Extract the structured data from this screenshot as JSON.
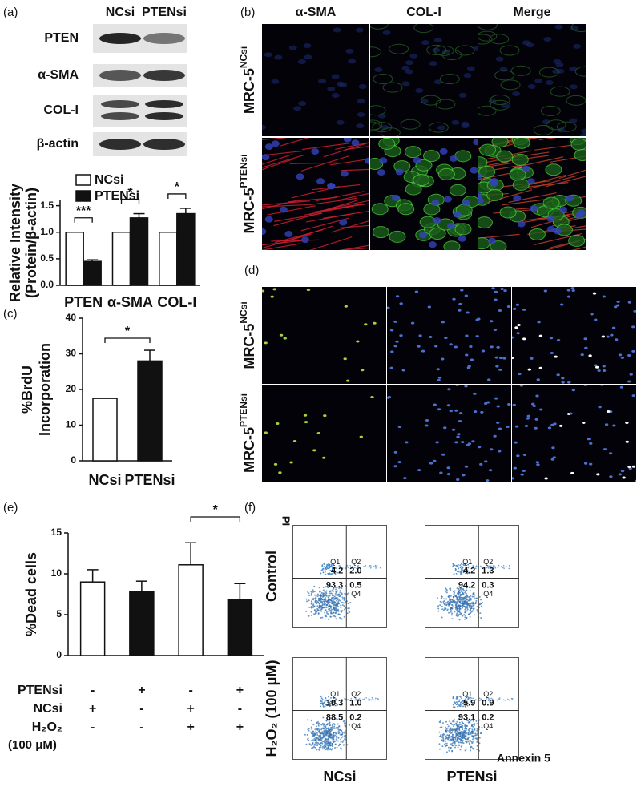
{
  "panel_labels": [
    "(a)",
    "(b)",
    "(c)",
    "(d)",
    "(e)",
    "(f)"
  ],
  "blot": {
    "columns": [
      "NCsi",
      "PTENsi"
    ],
    "rows": [
      "PTEN",
      "α-SMA",
      "COL-I",
      "β-actin"
    ]
  },
  "chart_data": [
    {
      "type": "bar",
      "y_label": [
        "Relative Intensity",
        "(Protein/β-actin)"
      ],
      "categories": [
        "PTEN",
        "α-SMA",
        "COL-I"
      ],
      "series": [
        {
          "name": "NCsi",
          "color": "#ffffff",
          "values": [
            1.0,
            1.0,
            1.0
          ]
        },
        {
          "name": "PTENsi",
          "color": "#111111",
          "values": [
            0.45,
            1.27,
            1.35
          ],
          "errors": [
            0.03,
            0.08,
            0.1
          ]
        }
      ],
      "ylim": [
        0,
        1.6
      ],
      "yticks": [
        {
          "value": 0,
          "label": "0.0"
        },
        {
          "value": 0.5,
          "label": "0.5"
        },
        {
          "value": 1,
          "label": "1.0"
        },
        {
          "value": 1.5,
          "label": "1.5"
        }
      ],
      "significance": [
        "***",
        "*",
        "*"
      ]
    },
    {
      "type": "bar",
      "y_label": [
        "%BrdU",
        "Incorporation"
      ],
      "categories": [
        "NCsi",
        "PTENsi"
      ],
      "values": [
        17.5,
        28
      ],
      "errors": [
        0,
        3
      ],
      "colors": [
        "#ffffff",
        "#111111"
      ],
      "ylim": [
        0,
        40
      ],
      "yticks": [
        0,
        10,
        20,
        30,
        40
      ],
      "significance": "*"
    },
    {
      "type": "bar",
      "y_label": [
        "%Dead cells"
      ],
      "categories": [
        null,
        null,
        null,
        null
      ],
      "values": [
        9.0,
        7.8,
        11.1,
        6.8
      ],
      "errors": [
        1.5,
        1.3,
        2.7,
        2.0
      ],
      "colors": [
        "#ffffff",
        "#111111",
        "#ffffff",
        "#111111"
      ],
      "ylim": [
        0,
        15
      ],
      "yticks": [
        0,
        5,
        10,
        15
      ],
      "significance": "*",
      "conditions": [
        {
          "label": "PTENsi",
          "signs": [
            "-",
            "+",
            "-",
            "+"
          ]
        },
        {
          "label": "NCsi",
          "signs": [
            "+",
            "-",
            "+",
            "-"
          ]
        },
        {
          "label": "H₂O₂",
          "signs": [
            "-",
            "-",
            "+",
            "+"
          ]
        }
      ],
      "condition_note": "(100 μM)"
    }
  ],
  "micrograph_b": {
    "columns": [
      "α-SMA",
      "COL-I",
      "Merge"
    ],
    "rows": [
      {
        "base": "MRC-5",
        "sup": "NCsi"
      },
      {
        "base": "MRC-5",
        "sup": "PTENsi"
      }
    ]
  },
  "micrograph_d": {
    "rows": [
      {
        "base": "MRC-5",
        "sup": "NCsi"
      },
      {
        "base": "MRC-5",
        "sup": "PTENsi"
      }
    ]
  },
  "flow": {
    "rows": [
      "Control",
      "H₂O₂ (100 μM)"
    ],
    "columns": [
      "NCsi",
      "PTENsi"
    ],
    "y_axis": "PI",
    "x_axis": "Annexin 5",
    "quadrant_names": [
      "Q1",
      "Q2",
      "Q4"
    ],
    "plots": [
      [
        {
          "q1": "4.2",
          "q2": "2.0",
          "q3": "93.3",
          "q4": "0.5"
        },
        {
          "q1": "4.2",
          "q2": "1.3",
          "q3": "94.2",
          "q4": "0.3"
        }
      ],
      [
        {
          "q1": "10.3",
          "q2": "1.0",
          "q3": "88.5",
          "q4": "0.2"
        },
        {
          "q1": "5.9",
          "q2": "0.9",
          "q3": "93.1",
          "q4": "0.2"
        }
      ]
    ]
  }
}
